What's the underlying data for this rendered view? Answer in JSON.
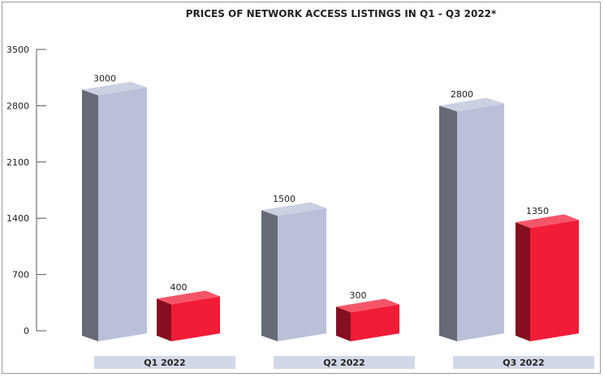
{
  "chart_data": {
    "type": "bar",
    "title": "PRICES OF NETWORK ACCESS LISTINGS IN Q1 - Q3 2022*",
    "categories": [
      "Q1 2022",
      "Q2 2022",
      "Q3 2022"
    ],
    "series": [
      {
        "values": [
          3000,
          1500,
          2800
        ],
        "color": "#b9c0d8"
      },
      {
        "values": [
          400,
          300,
          1350
        ],
        "color": "#f11c36"
      }
    ],
    "yticks": [
      0,
      700,
      1400,
      2100,
      2800,
      3500
    ],
    "ylim": [
      0,
      3500
    ],
    "grid": false,
    "legend": "none",
    "style": "3d-column"
  }
}
